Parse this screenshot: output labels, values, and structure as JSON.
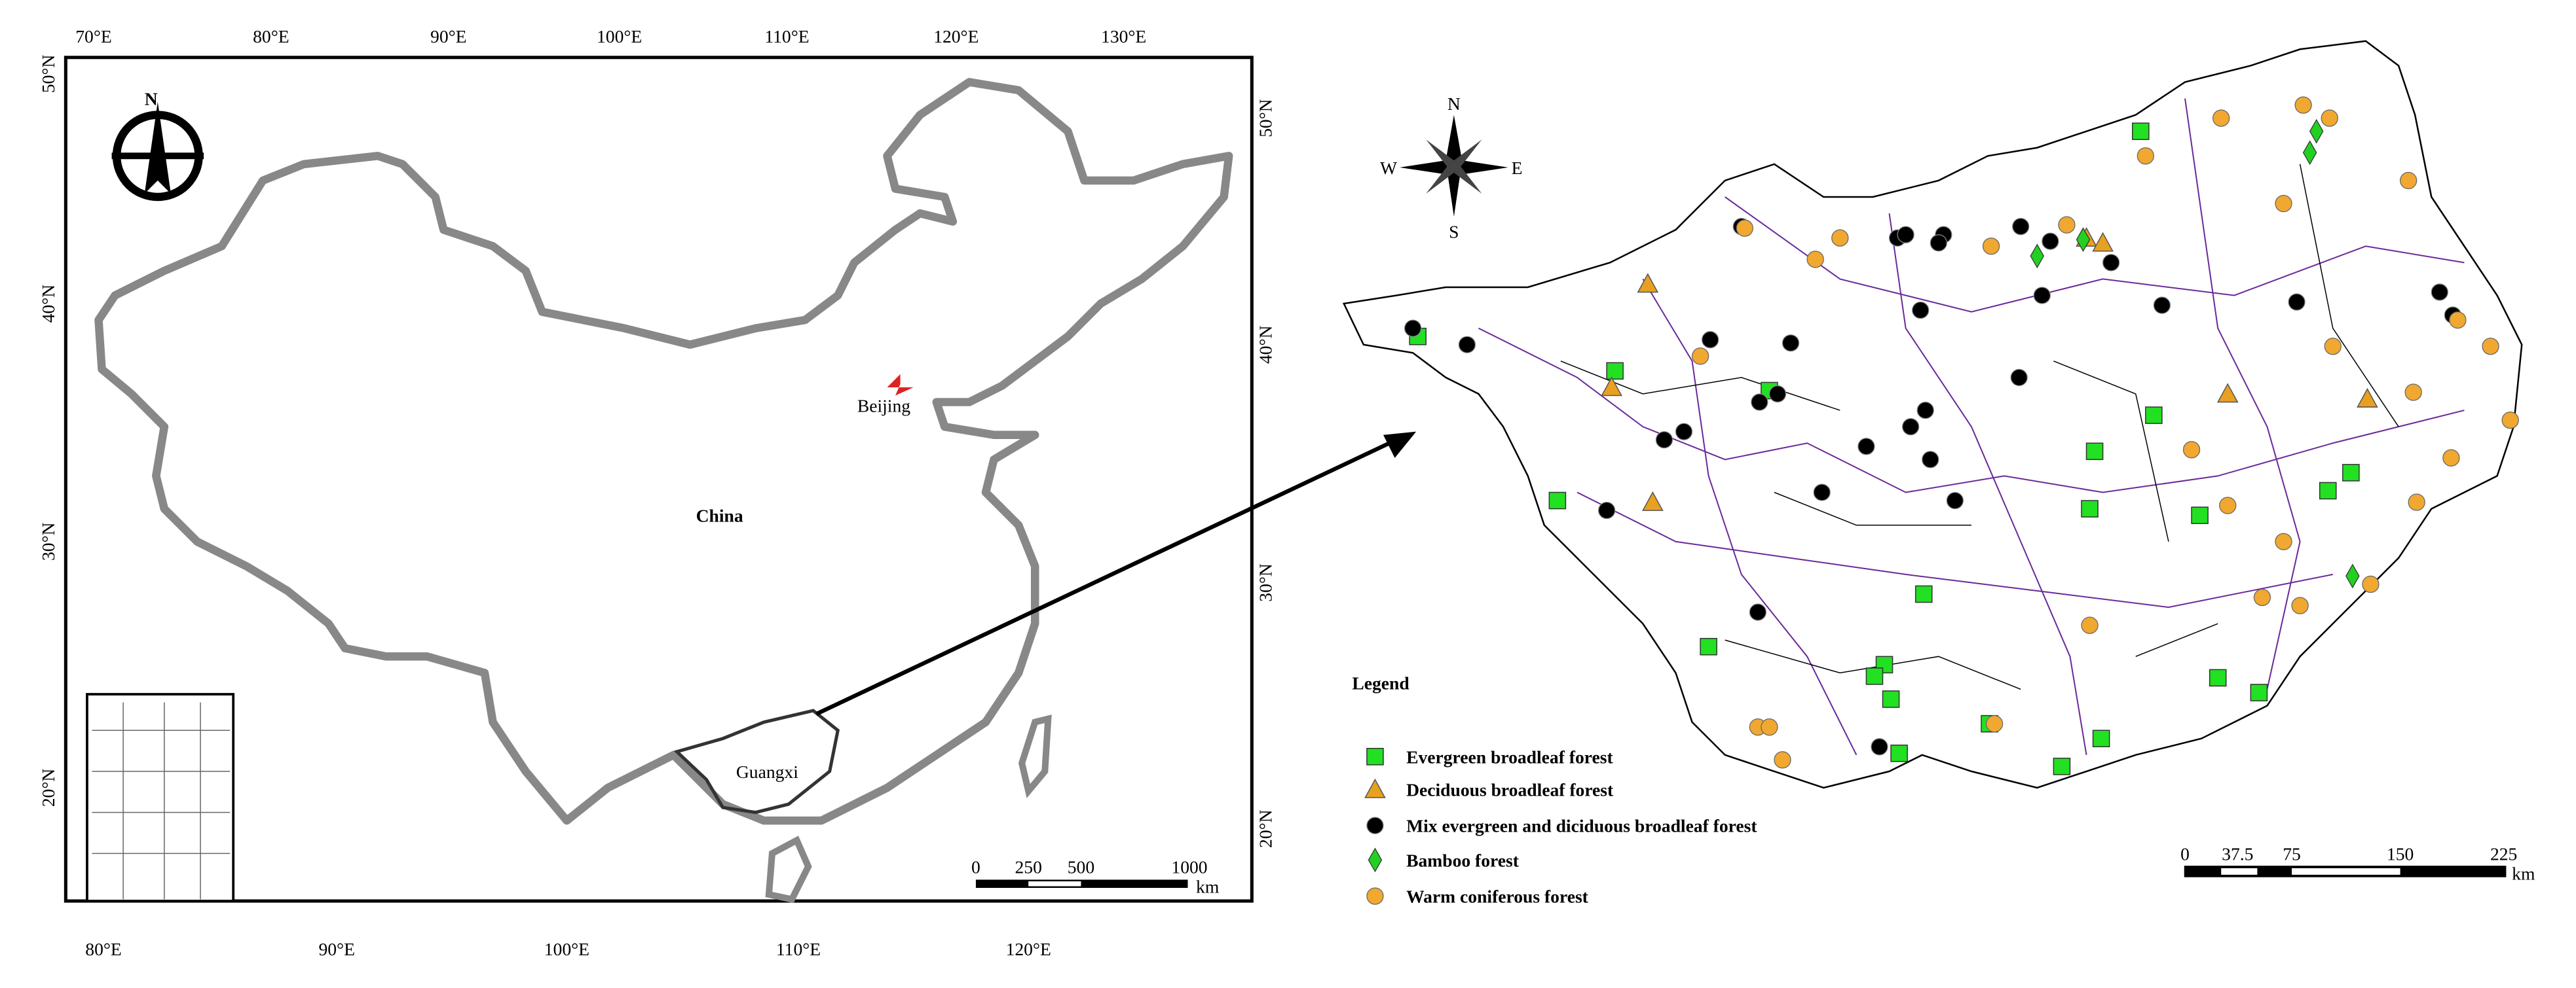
{
  "left_map": {
    "top_lon_labels": [
      "70°E",
      "80°E",
      "90°E",
      "100°E",
      "110°E",
      "120°E",
      "130°E"
    ],
    "bottom_lon_labels": [
      "80°E",
      "90°E",
      "100°E",
      "110°E",
      "120°E"
    ],
    "left_lat_labels": [
      "50°N",
      "40°N",
      "30°N",
      "20°N"
    ],
    "right_lat_labels": [
      "50°N",
      "40°N",
      "30°N",
      "20°N"
    ],
    "labels": {
      "country": "China",
      "capital": "Beijing",
      "province": "Guangxi"
    },
    "compass": "N",
    "scale_bar": {
      "ticks": [
        "0",
        "250",
        "500",
        "1000"
      ],
      "unit": "km"
    }
  },
  "right_map": {
    "compass": {
      "n": "N",
      "s": "S",
      "e": "E",
      "w": "W"
    },
    "legend": {
      "title": "Legend",
      "items": [
        "Evergreen broadleaf forest",
        "Deciduous broadleaf forest",
        "Mix evergreen and diciduous broadleaf forest",
        "Bamboo forest",
        "Warm coniferous forest"
      ]
    },
    "scale_bar": {
      "ticks": [
        "0",
        "37.5",
        "75",
        "150",
        "225"
      ],
      "unit": "km"
    }
  }
}
